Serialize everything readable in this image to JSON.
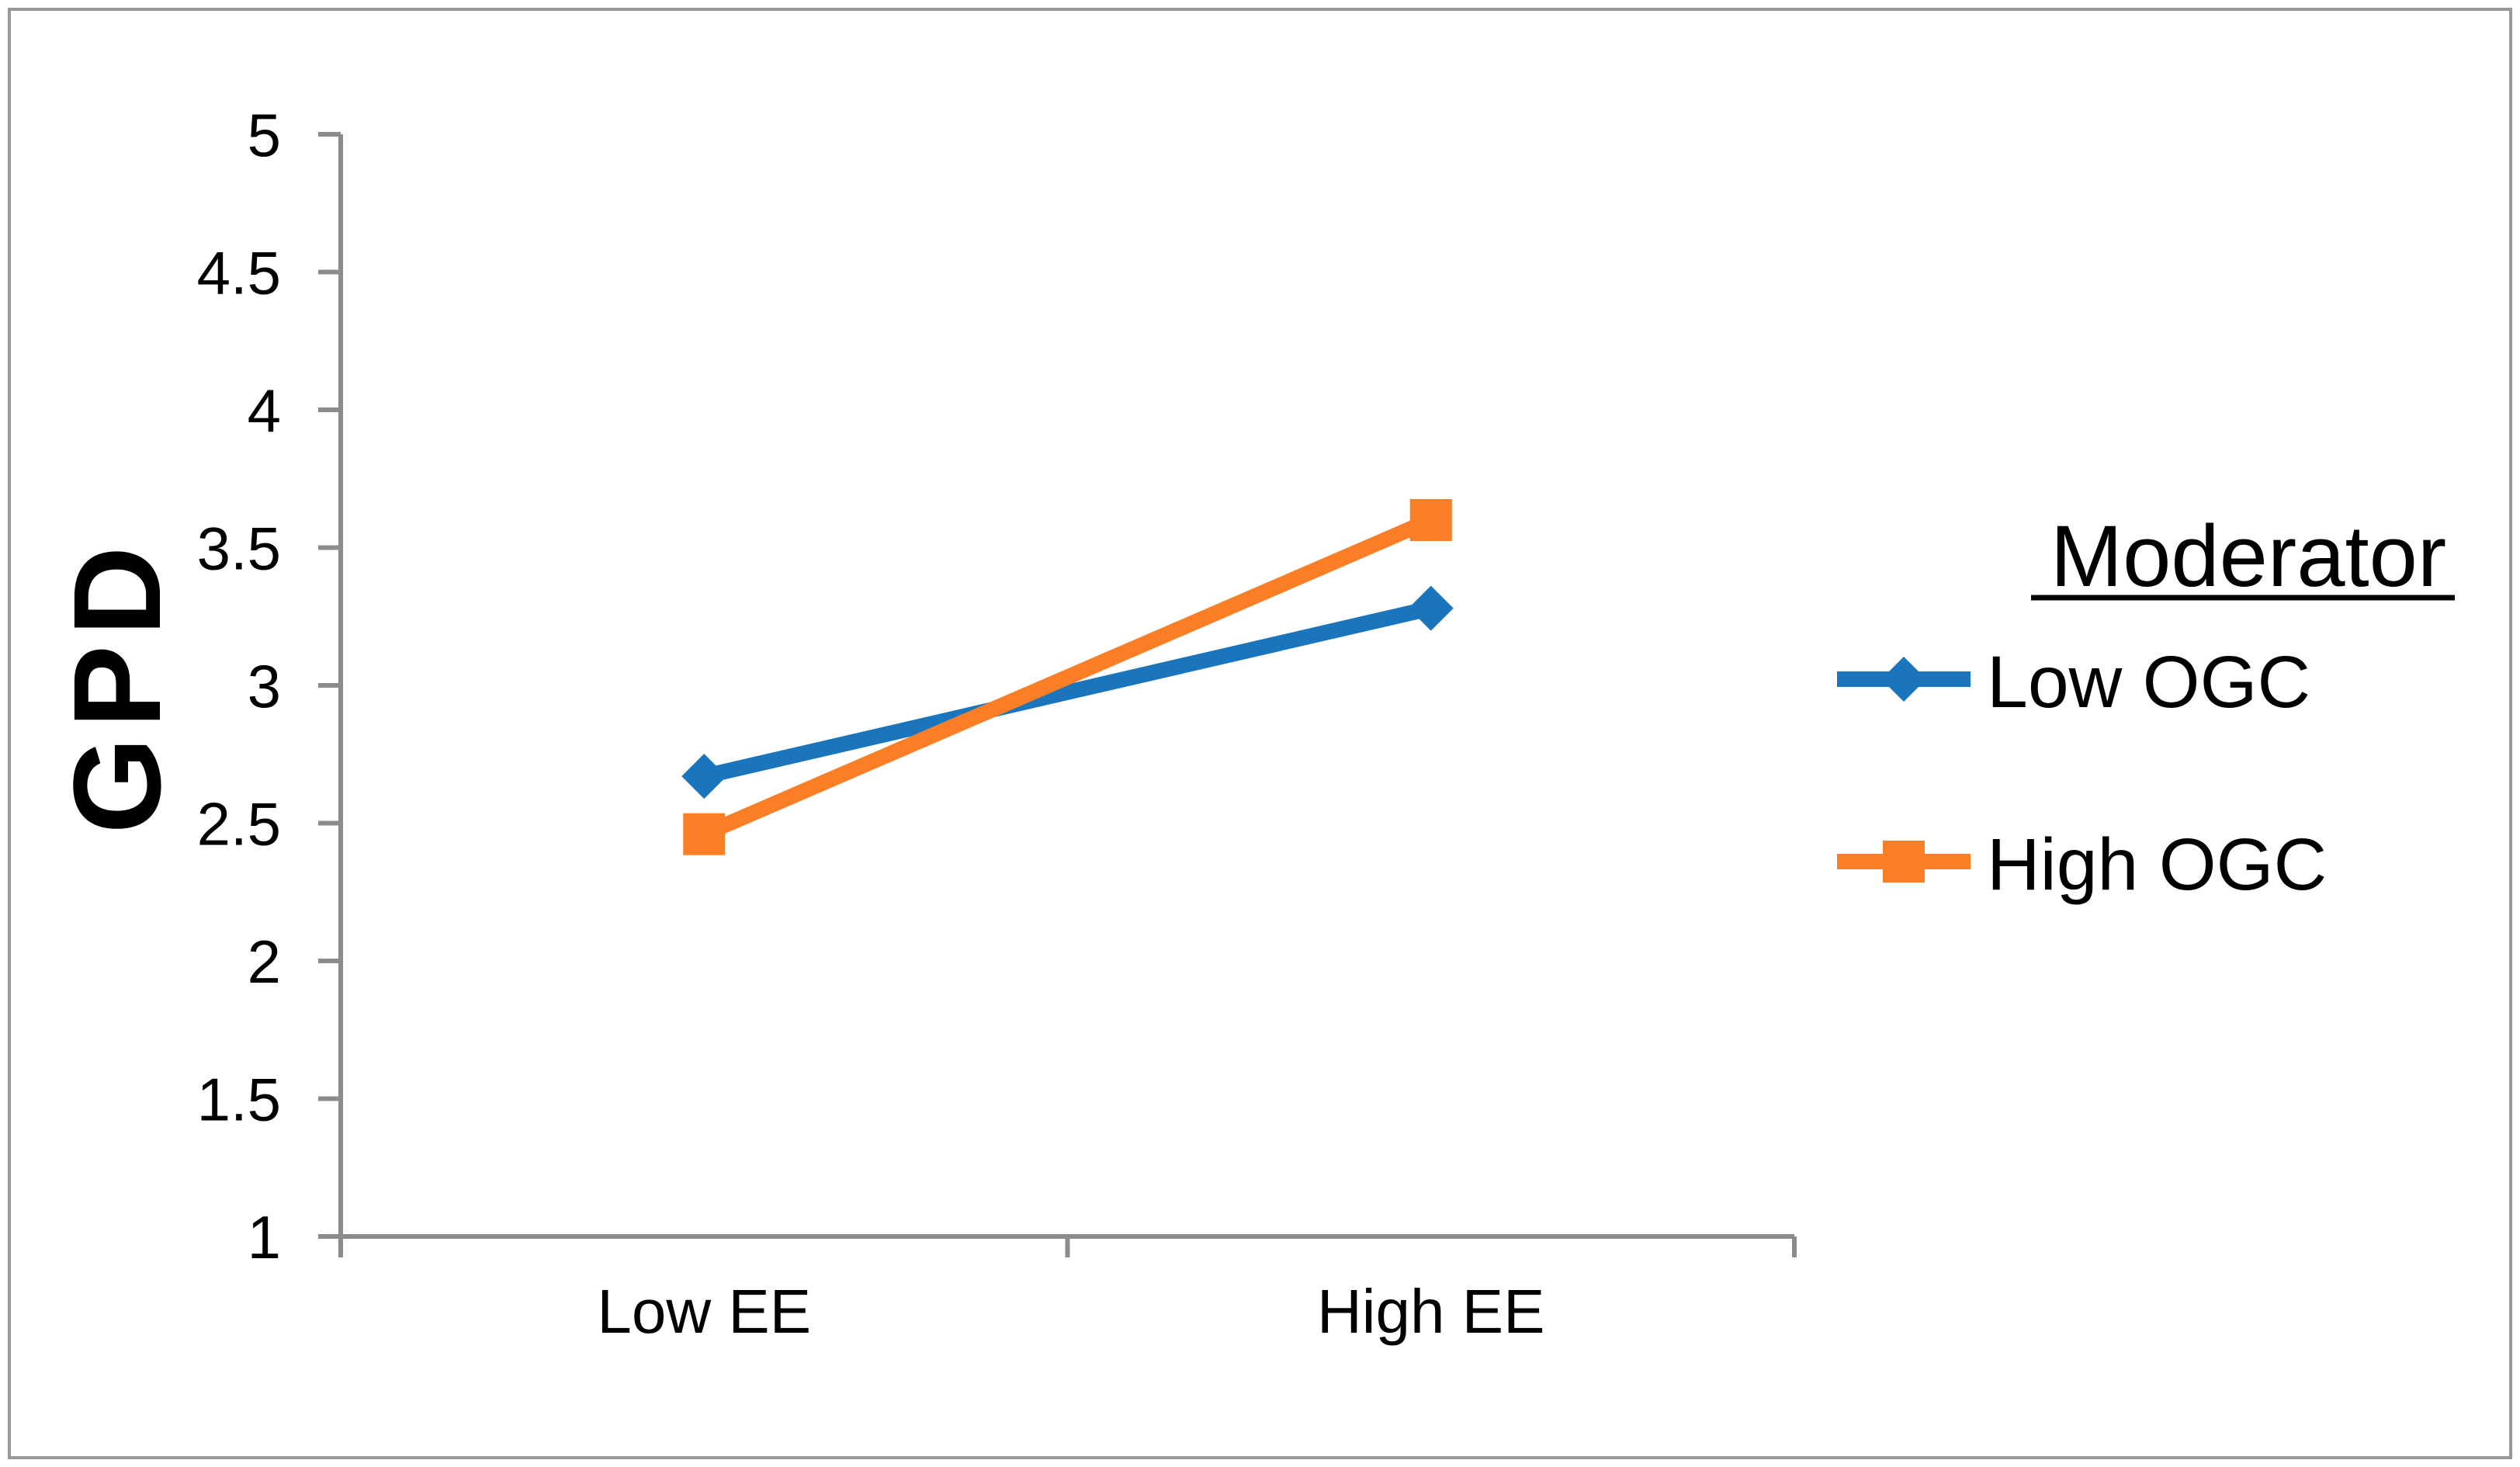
{
  "figure": {
    "background": "#FFFFFF",
    "border_color": "#999999"
  },
  "chart_data": {
    "type": "line",
    "title": "",
    "xlabel": "",
    "ylabel": "GPD",
    "categories": [
      "Low EE",
      "High EE"
    ],
    "series": [
      {
        "name": "Low OGC",
        "color": "#1B75BC",
        "marker": "diamond",
        "values": [
          2.67,
          3.28
        ]
      },
      {
        "name": "High OGC",
        "color": "#F97E26",
        "marker": "square",
        "values": [
          2.46,
          3.6
        ]
      }
    ],
    "ylim": [
      1,
      5
    ],
    "ytick_step": 0.5,
    "yticks": [
      "5",
      "4.5",
      "4",
      "3.5",
      "3",
      "2.5",
      "2",
      "1.5",
      "1"
    ],
    "grid": false,
    "axis_color": "#8C8C8C",
    "legend": {
      "title": "Moderator",
      "position": "right",
      "title_underlined": true
    }
  }
}
